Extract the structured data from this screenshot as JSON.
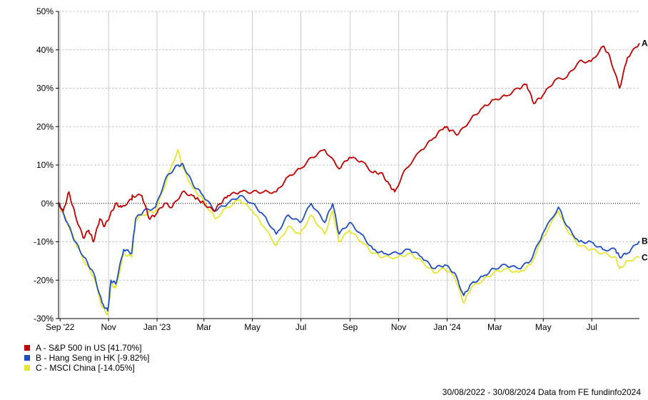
{
  "chart_data": {
    "type": "line",
    "title": "",
    "xlabel": "",
    "ylabel": "",
    "ylim": [
      -30,
      50
    ],
    "y_ticks": [
      50,
      40,
      30,
      20,
      10,
      0,
      -10,
      -20,
      -30
    ],
    "y_tick_labels": [
      "50%",
      "40%",
      "30%",
      "20%",
      "10%",
      "0%",
      "-10%",
      "-20%",
      "-30%"
    ],
    "x_range": [
      "2022-08-30",
      "2024-08-30"
    ],
    "x_ticks": [
      {
        "date": "2022-09-01",
        "label": "Sep '22"
      },
      {
        "date": "2022-11-01",
        "label": "Nov"
      },
      {
        "date": "2023-01-01",
        "label": "Jan '23"
      },
      {
        "date": "2023-03-01",
        "label": "Mar"
      },
      {
        "date": "2023-05-01",
        "label": "May"
      },
      {
        "date": "2023-07-01",
        "label": "Jul"
      },
      {
        "date": "2023-09-01",
        "label": "Sep"
      },
      {
        "date": "2023-11-01",
        "label": "Nov"
      },
      {
        "date": "2024-01-01",
        "label": "Jan '24"
      },
      {
        "date": "2024-03-01",
        "label": "Mar"
      },
      {
        "date": "2024-05-01",
        "label": "May"
      },
      {
        "date": "2024-07-01",
        "label": "Jul"
      }
    ],
    "grid": true,
    "zero_line": "dotted",
    "series": [
      {
        "name": "A - S&P 500 in US [41.70%]",
        "end_label": "A",
        "color": "#c00000",
        "points": [
          [
            "2022-08-30",
            0
          ],
          [
            "2022-09-05",
            -2
          ],
          [
            "2022-09-12",
            3
          ],
          [
            "2022-09-20",
            -3
          ],
          [
            "2022-09-30",
            -9
          ],
          [
            "2022-10-07",
            -7
          ],
          [
            "2022-10-13",
            -10
          ],
          [
            "2022-10-21",
            -4
          ],
          [
            "2022-10-27",
            -6
          ],
          [
            "2022-11-03",
            -3
          ],
          [
            "2022-11-10",
            0
          ],
          [
            "2022-11-17",
            -1
          ],
          [
            "2022-11-30",
            1
          ],
          [
            "2022-12-01",
            2
          ],
          [
            "2022-12-13",
            2
          ],
          [
            "2022-12-22",
            -4
          ],
          [
            "2022-12-30",
            -3
          ],
          [
            "2023-01-10",
            0
          ],
          [
            "2023-01-20",
            -1
          ],
          [
            "2023-02-02",
            3
          ],
          [
            "2023-02-15",
            2
          ],
          [
            "2023-02-22",
            1
          ],
          [
            "2023-03-01",
            0
          ],
          [
            "2023-03-13",
            -2
          ],
          [
            "2023-03-22",
            0
          ],
          [
            "2023-03-31",
            2
          ],
          [
            "2023-04-15",
            3
          ],
          [
            "2023-05-01",
            3
          ],
          [
            "2023-05-15",
            3
          ],
          [
            "2023-05-31",
            3
          ],
          [
            "2023-06-15",
            7
          ],
          [
            "2023-06-30",
            9
          ],
          [
            "2023-07-15",
            12
          ],
          [
            "2023-07-31",
            14
          ],
          [
            "2023-08-18",
            9
          ],
          [
            "2023-08-31",
            12
          ],
          [
            "2023-09-15",
            11
          ],
          [
            "2023-09-30",
            8
          ],
          [
            "2023-10-10",
            8
          ],
          [
            "2023-10-20",
            5
          ],
          [
            "2023-10-27",
            3
          ],
          [
            "2023-11-10",
            9
          ],
          [
            "2023-11-30",
            14
          ],
          [
            "2023-12-15",
            17
          ],
          [
            "2023-12-29",
            20
          ],
          [
            "2024-01-05",
            19
          ],
          [
            "2024-01-15",
            18
          ],
          [
            "2024-01-31",
            22
          ],
          [
            "2024-02-15",
            25
          ],
          [
            "2024-02-29",
            27
          ],
          [
            "2024-03-15",
            28
          ],
          [
            "2024-03-31",
            30
          ],
          [
            "2024-04-10",
            31
          ],
          [
            "2024-04-19",
            26
          ],
          [
            "2024-04-30",
            28
          ],
          [
            "2024-05-15",
            32
          ],
          [
            "2024-05-31",
            33
          ],
          [
            "2024-06-15",
            37
          ],
          [
            "2024-06-30",
            37
          ],
          [
            "2024-07-16",
            41
          ],
          [
            "2024-07-24",
            38
          ],
          [
            "2024-08-05",
            30
          ],
          [
            "2024-08-15",
            38
          ],
          [
            "2024-08-30",
            41.7
          ]
        ]
      },
      {
        "name": "B - Hang Seng in HK [-9.82%]",
        "end_label": "B",
        "color": "#1f4fbf",
        "points": [
          [
            "2022-08-30",
            0
          ],
          [
            "2022-09-10",
            -5
          ],
          [
            "2022-09-20",
            -10
          ],
          [
            "2022-10-01",
            -14
          ],
          [
            "2022-10-13",
            -18
          ],
          [
            "2022-10-24",
            -26
          ],
          [
            "2022-10-31",
            -28
          ],
          [
            "2022-11-04",
            -20
          ],
          [
            "2022-11-10",
            -21
          ],
          [
            "2022-11-20",
            -12
          ],
          [
            "2022-11-30",
            -13
          ],
          [
            "2022-12-05",
            -4
          ],
          [
            "2022-12-15",
            -2
          ],
          [
            "2022-12-30",
            -1
          ],
          [
            "2023-01-13",
            7
          ],
          [
            "2023-01-27",
            10
          ],
          [
            "2023-02-03",
            10
          ],
          [
            "2023-02-15",
            5
          ],
          [
            "2023-02-28",
            2
          ],
          [
            "2023-03-15",
            -2
          ],
          [
            "2023-03-31",
            0
          ],
          [
            "2023-04-15",
            2
          ],
          [
            "2023-05-01",
            0
          ],
          [
            "2023-05-15",
            -3
          ],
          [
            "2023-05-31",
            -8
          ],
          [
            "2023-06-15",
            -3
          ],
          [
            "2023-06-30",
            -5
          ],
          [
            "2023-07-14",
            0
          ],
          [
            "2023-07-31",
            -5
          ],
          [
            "2023-08-10",
            0
          ],
          [
            "2023-08-18",
            -8
          ],
          [
            "2023-08-31",
            -5
          ],
          [
            "2023-09-15",
            -8
          ],
          [
            "2023-09-30",
            -12
          ],
          [
            "2023-10-13",
            -13
          ],
          [
            "2023-10-31",
            -13
          ],
          [
            "2023-11-15",
            -12
          ],
          [
            "2023-11-30",
            -14
          ],
          [
            "2023-12-15",
            -17
          ],
          [
            "2023-12-29",
            -16
          ],
          [
            "2024-01-10",
            -18
          ],
          [
            "2024-01-22",
            -24
          ],
          [
            "2024-01-31",
            -21
          ],
          [
            "2024-02-15",
            -19
          ],
          [
            "2024-02-29",
            -17
          ],
          [
            "2024-03-15",
            -16
          ],
          [
            "2024-03-31",
            -17
          ],
          [
            "2024-04-15",
            -15
          ],
          [
            "2024-04-30",
            -8
          ],
          [
            "2024-05-20",
            -1
          ],
          [
            "2024-05-31",
            -6
          ],
          [
            "2024-06-15",
            -10
          ],
          [
            "2024-06-30",
            -10
          ],
          [
            "2024-07-15",
            -12
          ],
          [
            "2024-07-31",
            -12
          ],
          [
            "2024-08-05",
            -14
          ],
          [
            "2024-08-15",
            -13
          ],
          [
            "2024-08-30",
            -9.82
          ]
        ]
      },
      {
        "name": "C - MSCI China [-14.05%]",
        "end_label": "C",
        "color": "#e6e632",
        "points": [
          [
            "2022-08-30",
            0
          ],
          [
            "2022-09-10",
            -5
          ],
          [
            "2022-09-20",
            -10
          ],
          [
            "2022-10-01",
            -15
          ],
          [
            "2022-10-13",
            -19
          ],
          [
            "2022-10-24",
            -27
          ],
          [
            "2022-10-31",
            -29
          ],
          [
            "2022-11-04",
            -21
          ],
          [
            "2022-11-10",
            -22
          ],
          [
            "2022-11-20",
            -13
          ],
          [
            "2022-11-30",
            -14
          ],
          [
            "2022-12-05",
            -4
          ],
          [
            "2022-12-15",
            -3
          ],
          [
            "2022-12-30",
            -2
          ],
          [
            "2023-01-13",
            6
          ],
          [
            "2023-01-27",
            14
          ],
          [
            "2023-02-03",
            9
          ],
          [
            "2023-02-15",
            4
          ],
          [
            "2023-02-28",
            1
          ],
          [
            "2023-03-15",
            -4
          ],
          [
            "2023-03-31",
            -1
          ],
          [
            "2023-04-15",
            1
          ],
          [
            "2023-05-01",
            -2
          ],
          [
            "2023-05-15",
            -6
          ],
          [
            "2023-05-31",
            -11
          ],
          [
            "2023-06-15",
            -6
          ],
          [
            "2023-06-30",
            -8
          ],
          [
            "2023-07-14",
            -3
          ],
          [
            "2023-07-31",
            -8
          ],
          [
            "2023-08-10",
            -2
          ],
          [
            "2023-08-18",
            -10
          ],
          [
            "2023-08-31",
            -7
          ],
          [
            "2023-09-15",
            -10
          ],
          [
            "2023-09-30",
            -13
          ],
          [
            "2023-10-13",
            -14
          ],
          [
            "2023-10-31",
            -14
          ],
          [
            "2023-11-15",
            -13
          ],
          [
            "2023-11-30",
            -15
          ],
          [
            "2023-12-15",
            -18
          ],
          [
            "2023-12-29",
            -17
          ],
          [
            "2024-01-10",
            -19
          ],
          [
            "2024-01-22",
            -26
          ],
          [
            "2024-01-31",
            -22
          ],
          [
            "2024-02-15",
            -20
          ],
          [
            "2024-02-29",
            -18
          ],
          [
            "2024-03-15",
            -17
          ],
          [
            "2024-03-31",
            -18
          ],
          [
            "2024-04-15",
            -16
          ],
          [
            "2024-04-30",
            -9
          ],
          [
            "2024-05-20",
            -2
          ],
          [
            "2024-05-31",
            -7
          ],
          [
            "2024-06-15",
            -11
          ],
          [
            "2024-06-30",
            -12
          ],
          [
            "2024-07-15",
            -13
          ],
          [
            "2024-07-31",
            -14
          ],
          [
            "2024-08-05",
            -17
          ],
          [
            "2024-08-15",
            -15
          ],
          [
            "2024-08-30",
            -14.05
          ]
        ]
      }
    ],
    "legend_position": "bottom-left",
    "footer": "30/08/2022 - 30/08/2024 Data from FE fundinfo2024"
  }
}
